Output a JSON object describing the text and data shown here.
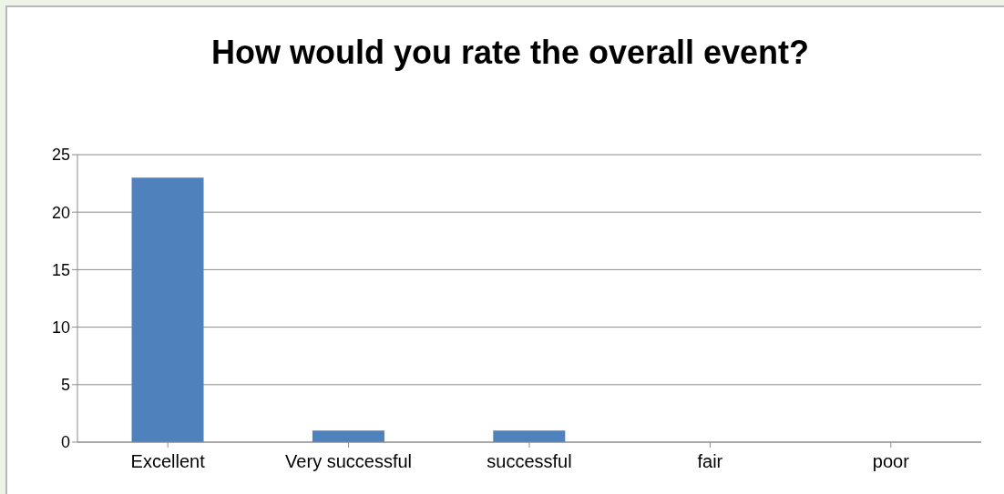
{
  "chart_data": {
    "type": "bar",
    "title": "How would you rate the overall event?",
    "categories": [
      "Excellent",
      "Very successful",
      "successful",
      "fair",
      "poor"
    ],
    "values": [
      23,
      1,
      1,
      0,
      0
    ],
    "color": "#4f81bd",
    "ylim": [
      0,
      25
    ],
    "yticks": [
      0,
      5,
      10,
      15,
      20,
      25
    ],
    "grid": "y",
    "legend": false
  }
}
